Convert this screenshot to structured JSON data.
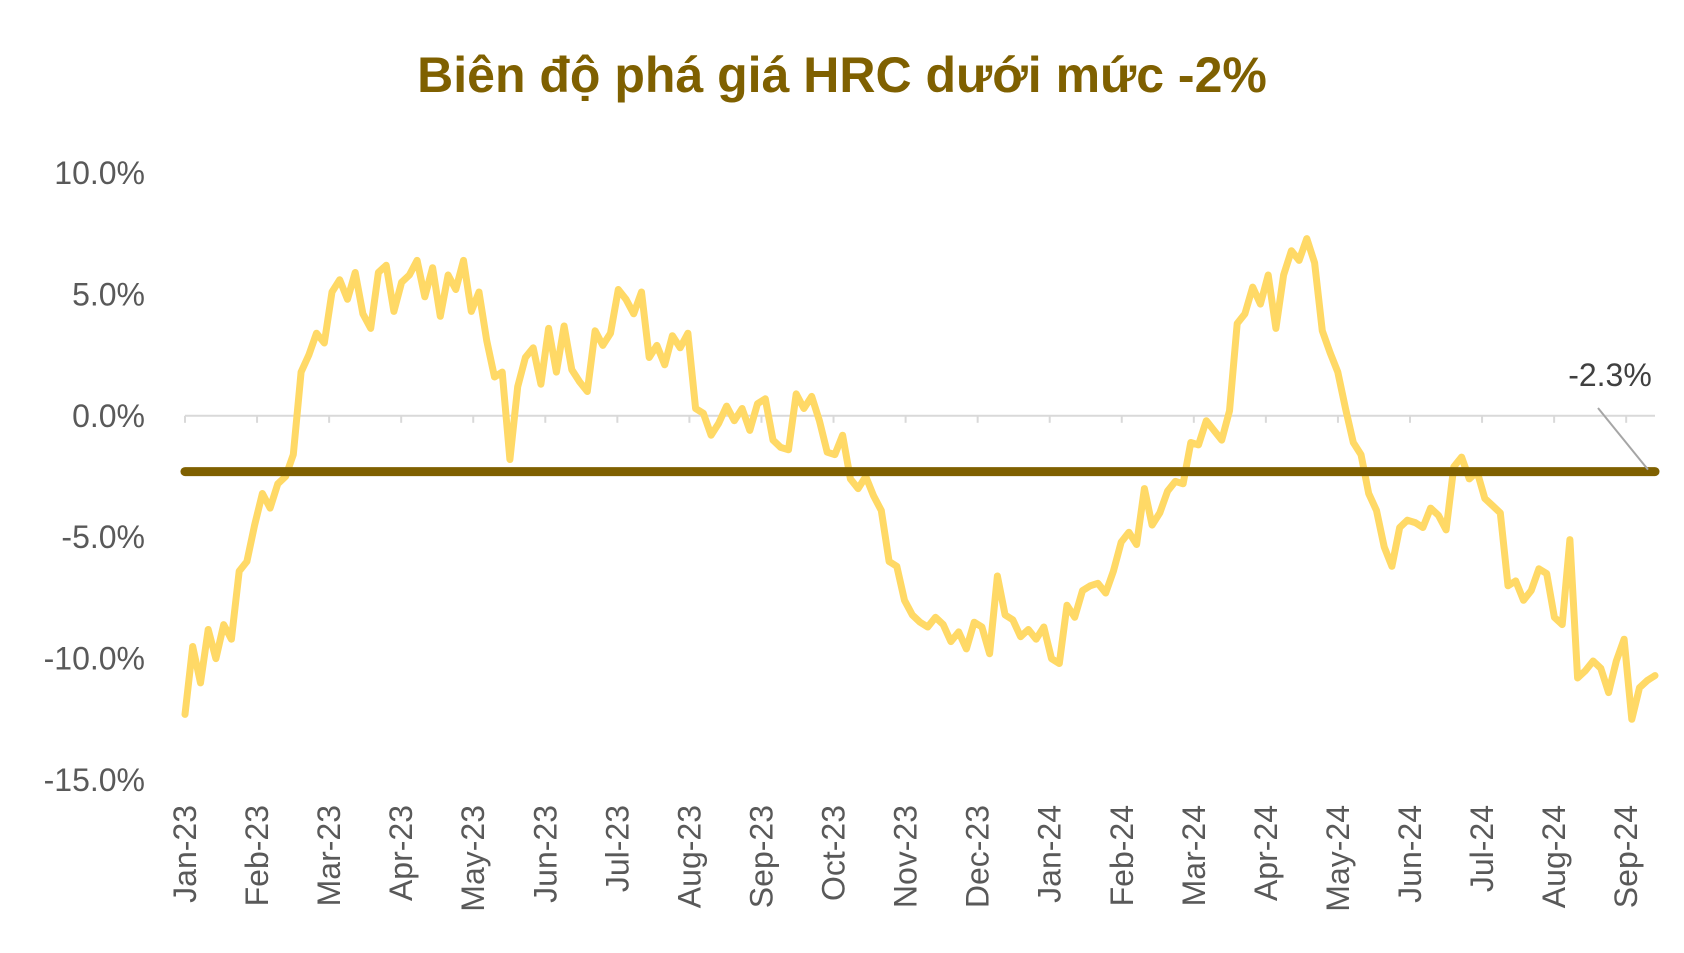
{
  "chart_data": {
    "type": "line",
    "title": "Biên độ phá giá HRC dưới mức -2%",
    "xlabel": "",
    "ylabel": "",
    "ylim": [
      -15,
      10
    ],
    "y_ticks": [
      "10.0%",
      "5.0%",
      "0.0%",
      "-5.0%",
      "-10.0%",
      "-15.0%"
    ],
    "x_ticks": [
      "Jan-23",
      "Feb-23",
      "Mar-23",
      "Apr-23",
      "May-23",
      "Jun-23",
      "Jul-23",
      "Aug-23",
      "Sep-23",
      "Oct-23",
      "Nov-23",
      "Dec-23",
      "Jan-24",
      "Feb-24",
      "Mar-24",
      "Apr-24",
      "May-24",
      "Jun-24",
      "Jul-24",
      "Aug-24",
      "Sep-24"
    ],
    "grid": false,
    "legend": "none",
    "series": [
      {
        "values": [
          -12.3,
          -9.5,
          -11,
          -8.8,
          -10,
          -8.6,
          -9.2,
          -6.4,
          -6,
          -4.5,
          -3.2,
          -3.8,
          -2.8,
          -2.5,
          -1.6,
          1.8,
          2.5,
          3.4,
          3,
          5.1,
          5.6,
          4.8,
          5.9,
          4.2,
          3.6,
          5.9,
          6.2,
          4.3,
          5.5,
          5.8,
          6.4,
          4.9,
          6.1,
          4.1,
          5.8,
          5.2,
          6.4,
          4.3,
          5.1,
          3.1,
          1.6,
          1.8,
          -1.8,
          1.2,
          2.4,
          2.8,
          1.3,
          3.6,
          1.8,
          3.7,
          1.9,
          1.4,
          1,
          3.5,
          2.9,
          3.4,
          5.2,
          4.8,
          4.2,
          5.1,
          2.4,
          2.9,
          2.1,
          3.3,
          2.8,
          3.4,
          0.3,
          0.1,
          -0.8,
          -0.3,
          0.4,
          -0.2,
          0.3,
          -0.6,
          0.5,
          0.7,
          -1,
          -1.3,
          -1.4,
          0.9,
          0.3,
          0.8,
          -0.2,
          -1.5,
          -1.6,
          -0.8,
          -2.6,
          -3,
          -2.5,
          -3.3,
          -3.9,
          -6,
          -6.2,
          -7.6,
          -8.2,
          -8.5,
          -8.7,
          -8.3,
          -8.6,
          -9.3,
          -8.9,
          -9.6,
          -8.5,
          -8.7,
          -9.8,
          -6.6,
          -8.2,
          -8.4,
          -9.1,
          -8.8,
          -9.2,
          -8.7,
          -10,
          -10.2,
          -7.8,
          -8.3,
          -7.2,
          -7,
          -6.9,
          -7.3,
          -6.4,
          -5.2,
          -4.8,
          -5.3,
          -3,
          -4.5,
          -4,
          -3.1,
          -2.7,
          -2.8,
          -1.1,
          -1.2,
          -0.2,
          -0.6,
          -1,
          0.2,
          3.8,
          4.2,
          5.3,
          4.6,
          5.8,
          3.6,
          5.8,
          6.8,
          6.4,
          7.3,
          6.3,
          3.5,
          2.6,
          1.8,
          0.3,
          -1.1,
          -1.6,
          -3.2,
          -3.9,
          -5.4,
          -6.2,
          -4.6,
          -4.3,
          -4.4,
          -4.6,
          -3.8,
          -4.1,
          -4.7,
          -2.1,
          -1.7,
          -2.6,
          -2.3,
          -3.4,
          -3.7,
          -4,
          -7,
          -6.8,
          -7.6,
          -7.2,
          -6.3,
          -6.5,
          -8.3,
          -8.6,
          -5.1,
          -10.8,
          -10.5,
          -10.1,
          -10.4,
          -11.4,
          -10.1,
          -9.2,
          -12.5,
          -11.2,
          -10.9,
          -10.7
        ],
        "color": "#FFD966"
      },
      {
        "values": [
          -2.3,
          -2.3
        ],
        "color": "#7F6000"
      }
    ],
    "annotations": [
      {
        "text": "-2.3%"
      }
    ],
    "colors": {
      "title": "#7F6000",
      "price_line": "#FFD966",
      "threshold_line": "#7F6000",
      "axis": "#D9D9D9",
      "tick_label": "#595959",
      "leader_line": "#A6A6A6"
    }
  }
}
